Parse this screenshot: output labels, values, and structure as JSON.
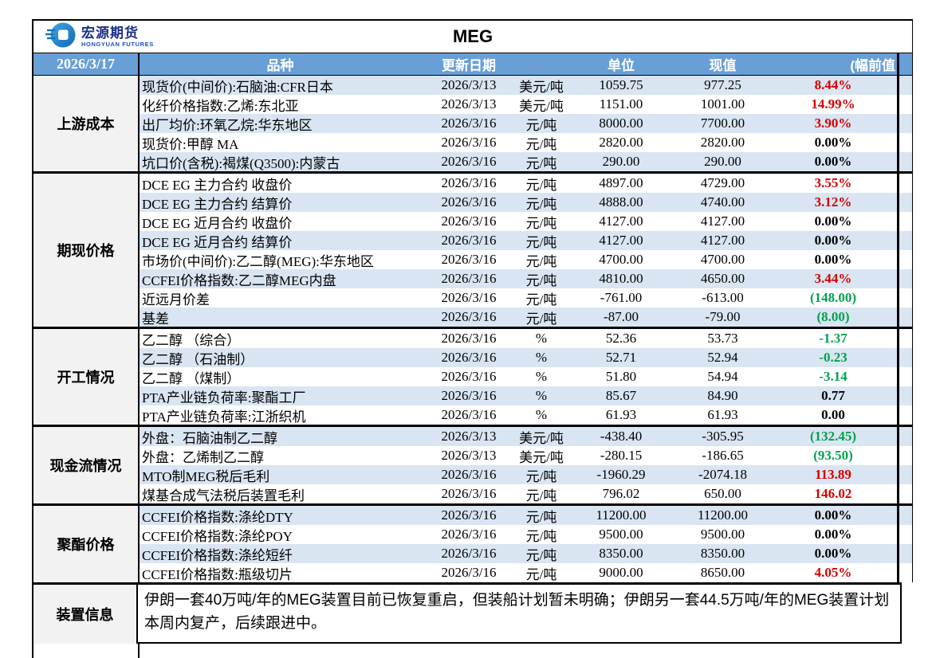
{
  "meta": {
    "report_date": "2026/3/17",
    "title": "MEG"
  },
  "logo": {
    "name": "宏源期货",
    "subtitle": "HONGYUAN FUTURES"
  },
  "colors": {
    "header_blue": "#699fd7",
    "stripe_blue": "#d9e5f2",
    "category_gray": "#f2f2f2",
    "up_red": "#d40000",
    "down_green": "#00a34e"
  },
  "header": {
    "variety": "品种",
    "update_date": "更新日期",
    "unit": "单位",
    "current": "现值",
    "previous_change": "(幅前值"
  },
  "sections": [
    {
      "category": "上游成本",
      "rows": [
        {
          "name": "现货价(中间价):石脑油:CFR日本",
          "date": "2026/3/13",
          "unit": "美元/吨",
          "current": "1059.75",
          "previous": "977.25",
          "change": "8.44%",
          "change_color": "red"
        },
        {
          "name": "化纤价格指数:乙烯:东北亚",
          "date": "2026/3/13",
          "unit": "美元/吨",
          "current": "1151.00",
          "previous": "1001.00",
          "change": "14.99%",
          "change_color": "red"
        },
        {
          "name": "出厂均价:环氧乙烷:华东地区",
          "date": "2026/3/16",
          "unit": "元/吨",
          "current": "8000.00",
          "previous": "7700.00",
          "change": "3.90%",
          "change_color": "red"
        },
        {
          "name": "现货价:甲醇 MA",
          "date": "2026/3/16",
          "unit": "元/吨",
          "current": "2820.00",
          "previous": "2820.00",
          "change": "0.00%",
          "change_color": "black"
        },
        {
          "name": "坑口价(含税):褐煤(Q3500):内蒙古",
          "date": "2026/3/16",
          "unit": "元/吨",
          "current": "290.00",
          "previous": "290.00",
          "change": "0.00%",
          "change_color": "black"
        }
      ]
    },
    {
      "category": "期现价格",
      "rows": [
        {
          "name": "DCE EG 主力合约 收盘价",
          "date": "2026/3/16",
          "unit": "元/吨",
          "current": "4897.00",
          "previous": "4729.00",
          "change": "3.55%",
          "change_color": "red"
        },
        {
          "name": "DCE EG 主力合约 结算价",
          "date": "2026/3/16",
          "unit": "元/吨",
          "current": "4888.00",
          "previous": "4740.00",
          "change": "3.12%",
          "change_color": "red"
        },
        {
          "name": "DCE EG 近月合约 收盘价",
          "date": "2026/3/16",
          "unit": "元/吨",
          "current": "4127.00",
          "previous": "4127.00",
          "change": "0.00%",
          "change_color": "black"
        },
        {
          "name": "DCE EG 近月合约 结算价",
          "date": "2026/3/16",
          "unit": "元/吨",
          "current": "4127.00",
          "previous": "4127.00",
          "change": "0.00%",
          "change_color": "black"
        },
        {
          "name": "市场价(中间价):乙二醇(MEG):华东地区",
          "date": "2026/3/16",
          "unit": "元/吨",
          "current": "4700.00",
          "previous": "4700.00",
          "change": "0.00%",
          "change_color": "black"
        },
        {
          "name": "CCFEI价格指数:乙二醇MEG内盘",
          "date": "2026/3/16",
          "unit": "元/吨",
          "current": "4810.00",
          "previous": "4650.00",
          "change": "3.44%",
          "change_color": "red"
        },
        {
          "name": "近远月价差",
          "date": "2026/3/16",
          "unit": "元/吨",
          "current": "-761.00",
          "previous": "-613.00",
          "change": "(148.00)",
          "change_color": "green"
        },
        {
          "name": "基差",
          "date": "2026/3/16",
          "unit": "元/吨",
          "current": "-87.00",
          "previous": "-79.00",
          "change": "(8.00)",
          "change_color": "green"
        }
      ]
    },
    {
      "category": "开工情况",
      "rows": [
        {
          "name": "乙二醇 （综合）",
          "date": "2026/3/16",
          "unit": "%",
          "current": "52.36",
          "previous": "53.73",
          "change": "-1.37",
          "change_color": "green"
        },
        {
          "name": "乙二醇 （石油制）",
          "date": "2026/3/16",
          "unit": "%",
          "current": "52.71",
          "previous": "52.94",
          "change": "-0.23",
          "change_color": "green"
        },
        {
          "name": "乙二醇 （煤制）",
          "date": "2026/3/16",
          "unit": "%",
          "current": "51.80",
          "previous": "54.94",
          "change": "-3.14",
          "change_color": "green"
        },
        {
          "name": "PTA产业链负荷率:聚酯工厂",
          "date": "2026/3/16",
          "unit": "%",
          "current": "85.67",
          "previous": "84.90",
          "change": "0.77",
          "change_color": "black"
        },
        {
          "name": "PTA产业链负荷率:江浙织机",
          "date": "2026/3/16",
          "unit": "%",
          "current": "61.93",
          "previous": "61.93",
          "change": "0.00",
          "change_color": "black"
        }
      ]
    },
    {
      "category": "现金流情况",
      "rows": [
        {
          "name": "外盘：石脑油制乙二醇",
          "date": "2026/3/13",
          "unit": "美元/吨",
          "current": "-438.40",
          "previous": "-305.95",
          "change": "(132.45)",
          "change_color": "green"
        },
        {
          "name": "外盘：乙烯制乙二醇",
          "date": "2026/3/13",
          "unit": "美元/吨",
          "current": "-280.15",
          "previous": "-186.65",
          "change": "(93.50)",
          "change_color": "green"
        },
        {
          "name": "MTO制MEG税后毛利",
          "date": "2026/3/16",
          "unit": "元/吨",
          "current": "-1960.29",
          "previous": "-2074.18",
          "change": "113.89",
          "change_color": "red"
        },
        {
          "name": "煤基合成气法税后装置毛利",
          "date": "2026/3/16",
          "unit": "元/吨",
          "current": "796.02",
          "previous": "650.00",
          "change": "146.02",
          "change_color": "red"
        }
      ]
    },
    {
      "category": "聚酯价格",
      "rows": [
        {
          "name": "CCFEI价格指数:涤纶DTY",
          "date": "2026/3/16",
          "unit": "元/吨",
          "current": "11200.00",
          "previous": "11200.00",
          "change": "0.00%",
          "change_color": "black"
        },
        {
          "name": "CCFEI价格指数:涤纶POY",
          "date": "2026/3/16",
          "unit": "元/吨",
          "current": "9500.00",
          "previous": "9500.00",
          "change": "0.00%",
          "change_color": "black"
        },
        {
          "name": "CCFEI价格指数:涤纶短纤",
          "date": "2026/3/16",
          "unit": "元/吨",
          "current": "8350.00",
          "previous": "8350.00",
          "change": "0.00%",
          "change_color": "black"
        },
        {
          "name": "CCFEI价格指数:瓶级切片",
          "date": "2026/3/16",
          "unit": "元/吨",
          "current": "9000.00",
          "previous": "8650.00",
          "change": "4.05%",
          "change_color": "red"
        }
      ]
    }
  ],
  "info": {
    "category": "装置信息",
    "text": "伊朗一套40万吨/年的MEG装置目前已恢复重启，但装船计划暂未明确；伊朗另一套44.5万吨/年的MEG装置计划本周内复产，后续跟进中。"
  }
}
